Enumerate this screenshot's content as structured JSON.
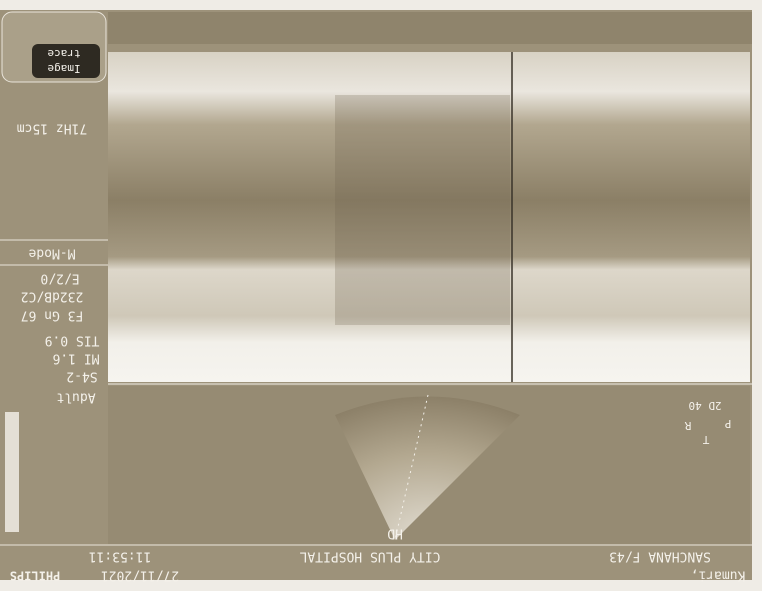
{
  "header": {
    "patient_name": "Kumari,",
    "patient_info": "SANCHANA F/43",
    "institution": "CITY PLUS HOSPITAL",
    "date": "27/11/2021",
    "time": "11:53:11",
    "brand": "PHILIPS"
  },
  "side_panel": {
    "frame_rate_depth": "71Hz 15cm",
    "mode": "M-Mode",
    "enhance": "E/2/0",
    "dynamic_range": "232dB/C2",
    "frequency_gain": "F3 Gn 67",
    "tis": "TIS 0.9",
    "mi": "MI 1.6",
    "probe": "S4-2",
    "preset": "Adult"
  },
  "buttons": {
    "image": "Image",
    "trace": "trace"
  },
  "sector": {
    "label": "HD",
    "mode_label": "2D 40",
    "orientation": [
      "P",
      "R",
      "T"
    ]
  }
}
